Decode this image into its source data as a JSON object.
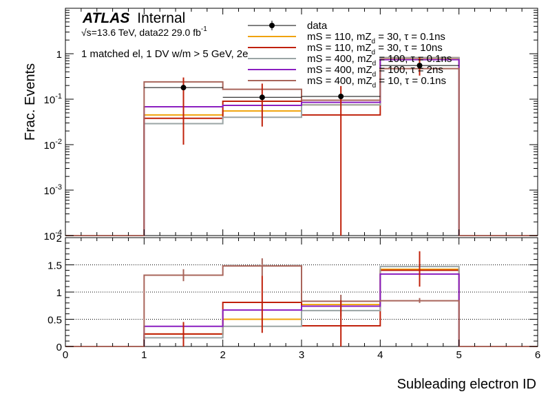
{
  "atlas": {
    "brand": "ATLAS",
    "status": "Internal"
  },
  "energy_line": {
    "sqrt": "√s",
    "energy": "=13.6 TeV, data22 29.0 fb",
    "lumi_exp": "-1"
  },
  "selection_line": "1 matched el, 1 DV w/m > 5 GeV, 2e",
  "chart_data": [
    {
      "type": "histogram",
      "panel": "main",
      "ylabel": "Frac. Events",
      "xlabel": "",
      "yscale": "log",
      "ylim": [
        0.0001,
        10
      ],
      "xlim": [
        0,
        6
      ],
      "x_ticks": [
        0,
        1,
        2,
        3,
        4,
        5,
        6
      ],
      "y_tick_labels": [
        {
          "value": 1,
          "mantissa": "1",
          "exponent": ""
        },
        {
          "value": 0.1,
          "mantissa": "10",
          "exponent": "-1"
        },
        {
          "value": 0.01,
          "mantissa": "10",
          "exponent": "-2"
        },
        {
          "value": 0.001,
          "mantissa": "10",
          "exponent": "-3"
        },
        {
          "value": 0.0001,
          "mantissa": "10",
          "exponent": "-4"
        }
      ],
      "bin_edges": [
        0,
        1,
        2,
        3,
        4,
        5,
        6
      ],
      "legend_position": "top-center",
      "series": [
        {
          "name": "data",
          "kind": "points",
          "color": "#000000",
          "x": [
            1.5,
            2.5,
            3.5,
            4.5
          ],
          "values": [
            0.18,
            0.11,
            0.115,
            0.55
          ],
          "err_low": [
            0.17,
            0.085,
            0.1149,
            0.22
          ],
          "err_high": [
            0.12,
            0.11,
            0.08,
            0.3
          ]
        },
        {
          "name": "mS = 110, mZd = 30, τ = 0.1ns",
          "label_main": "mS = 110, mZ",
          "label_sub": "d",
          "label_rest": " = 30, τ = 0.1ns",
          "kind": "step",
          "color": "#f0a30a",
          "values": [
            0.0,
            0.045,
            0.055,
            0.075,
            0.8,
            0.0
          ]
        },
        {
          "name": "mS = 110, mZd = 30, τ = 10ns",
          "label_main": "mS = 110, mZ",
          "label_sub": "d",
          "label_rest": " = 30, τ = 10ns",
          "kind": "step",
          "color": "#c0200a",
          "values": [
            0.0,
            0.038,
            0.09,
            0.045,
            0.82,
            0.0
          ]
        },
        {
          "name": "mS = 400, mZd = 100, τ = 0.1ns",
          "label_main": "mS = 400, mZ",
          "label_sub": "d",
          "label_rest": " = 100, τ = 0.1ns",
          "kind": "step",
          "color": "#9aa4a4",
          "values": [
            0.0,
            0.029,
            0.04,
            0.075,
            0.82,
            0.0
          ]
        },
        {
          "name": "mS = 400, mZd = 100, τ = 2ns",
          "label_main": "mS = 400, mZ",
          "label_sub": "d",
          "label_rest": " = 100, τ = 2ns",
          "kind": "step",
          "color": "#8a1ec0",
          "values": [
            0.0,
            0.068,
            0.073,
            0.085,
            0.74,
            0.0
          ]
        },
        {
          "name": "mS = 400, mZd = 10, τ = 0.1ns",
          "label_main": "mS = 400, mZ",
          "label_sub": "d",
          "label_rest": " = 10, τ = 0.1ns",
          "kind": "step",
          "color": "#a8645a",
          "values": [
            0.0,
            0.24,
            0.165,
            0.095,
            0.47,
            0.0
          ]
        }
      ]
    },
    {
      "type": "histogram",
      "panel": "ratio",
      "xlabel": "Subleading electron ID",
      "ylabel": "",
      "ylim": [
        0,
        2
      ],
      "xlim": [
        0,
        6
      ],
      "x_ticks": [
        0,
        1,
        2,
        3,
        4,
        5,
        6
      ],
      "y_ticks": [
        0,
        0.5,
        1,
        1.5,
        2
      ],
      "y_tick_labels": [
        "0",
        "0.5",
        "1",
        "1.5",
        "2"
      ],
      "gridlines_y": [
        0.5,
        1,
        1.5
      ],
      "bin_edges": [
        0,
        1,
        2,
        3,
        4,
        5,
        6
      ],
      "series": [
        {
          "name": "mS = 110, mZd = 30, τ = 0.1ns",
          "color": "#f0a30a",
          "values": [
            0,
            0.23,
            0.5,
            0.77,
            1.42,
            0
          ]
        },
        {
          "name": "mS = 110, mZd = 30, τ = 10ns",
          "color": "#c0200a",
          "values": [
            0,
            0.23,
            0.81,
            0.38,
            1.4,
            0
          ]
        },
        {
          "name": "mS = 400, mZd = 100, τ = 0.1ns",
          "color": "#9aa4a4",
          "values": [
            0,
            0.16,
            0.37,
            0.66,
            1.47,
            0
          ]
        },
        {
          "name": "mS = 400, mZd = 100, τ = 2ns",
          "color": "#8a1ec0",
          "values": [
            0,
            0.37,
            0.67,
            0.74,
            1.33,
            0
          ]
        },
        {
          "name": "mS = 400, mZd = 10, τ = 0.1ns",
          "color": "#a8645a",
          "values": [
            0,
            1.31,
            1.48,
            0.83,
            0.84,
            0
          ]
        }
      ],
      "error_bars": [
        {
          "x": 1.5,
          "color": "#a8645a",
          "center": 1.29,
          "low": 1.2,
          "high": 1.42
        },
        {
          "x": 1.5,
          "color": "#c0200a",
          "center": 0.23,
          "low": 0.0,
          "high": 0.45
        },
        {
          "x": 2.5,
          "color": "#a8645a",
          "center": 1.48,
          "low": 1.3,
          "high": 1.62
        },
        {
          "x": 2.5,
          "color": "#c0200a",
          "center": 0.81,
          "low": 0.25,
          "high": 1.3
        },
        {
          "x": 3.5,
          "color": "#a8645a",
          "center": 0.83,
          "low": 0.55,
          "high": 0.95
        },
        {
          "x": 3.5,
          "color": "#c0200a",
          "center": 0.38,
          "low": 0.0,
          "high": 0.85
        },
        {
          "x": 4.5,
          "color": "#a8645a",
          "center": 0.84,
          "low": 0.8,
          "high": 0.89
        },
        {
          "x": 4.5,
          "color": "#c0200a",
          "center": 1.4,
          "low": 1.1,
          "high": 1.75
        }
      ]
    }
  ]
}
